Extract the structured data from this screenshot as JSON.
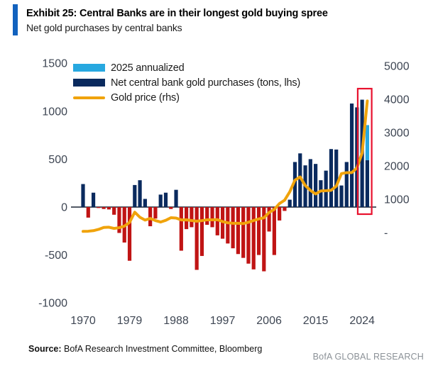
{
  "header": {
    "title": "Exhibit 25: Central Banks are in their longest gold buying spree",
    "subtitle": "Net gold purchases by central banks"
  },
  "legend": [
    {
      "label": "2025 annualized",
      "color": "#27A8E0",
      "swatch": "bar"
    },
    {
      "label": "Net central bank gold purchases (tons, lhs)",
      "color": "#0A2A5E",
      "swatch": "bar"
    },
    {
      "label": "Gold price (rhs)",
      "color": "#F0A30B",
      "swatch": "line"
    }
  ],
  "footer": {
    "source_label": "Source:",
    "source_text": " BofA Research Investment Committee, Bloomberg",
    "branding": "BofA GLOBAL RESEARCH"
  },
  "chart_data": {
    "type": "bar+line dual-axis",
    "title": "Exhibit 25: Central Banks are in their longest gold buying spree",
    "subtitle": "Net gold purchases by central banks",
    "x": [
      1970,
      1971,
      1972,
      1973,
      1974,
      1975,
      1976,
      1977,
      1978,
      1979,
      1980,
      1981,
      1982,
      1983,
      1984,
      1985,
      1986,
      1987,
      1988,
      1989,
      1990,
      1991,
      1992,
      1993,
      1994,
      1995,
      1996,
      1997,
      1998,
      1999,
      2000,
      2001,
      2002,
      2003,
      2004,
      2005,
      2006,
      2007,
      2008,
      2009,
      2010,
      2011,
      2012,
      2013,
      2014,
      2015,
      2016,
      2017,
      2018,
      2019,
      2020,
      2021,
      2022,
      2023,
      2024,
      2025
    ],
    "x_ticks": [
      1970,
      1979,
      1988,
      1997,
      2006,
      2015,
      2024
    ],
    "series": [
      {
        "name": "Net central bank gold purchases (tons, lhs)",
        "type": "bar",
        "axis": "left",
        "values": [
          240,
          -110,
          150,
          -10,
          -20,
          -25,
          -80,
          -270,
          -370,
          -560,
          230,
          280,
          85,
          -200,
          -120,
          130,
          150,
          -20,
          180,
          -455,
          -230,
          -210,
          -655,
          -510,
          -185,
          -210,
          -295,
          -330,
          -380,
          -430,
          -490,
          -530,
          -590,
          -650,
          -500,
          -670,
          -255,
          -500,
          -140,
          -40,
          77,
          470,
          560,
          435,
          500,
          450,
          280,
          380,
          605,
          600,
          225,
          470,
          1080,
          1040,
          1120,
          490
        ]
      },
      {
        "name": "2025 annualized",
        "type": "bar",
        "axis": "left",
        "year": 2025,
        "actual": 490,
        "annualized_total": 855
      },
      {
        "name": "Gold price (rhs)",
        "type": "line",
        "axis": "right",
        "values": [
          36,
          41,
          58,
          97,
          154,
          161,
          125,
          148,
          193,
          306,
          612,
          460,
          376,
          424,
          361,
          317,
          368,
          447,
          437,
          381,
          383,
          362,
          344,
          360,
          384,
          384,
          388,
          331,
          294,
          279,
          279,
          271,
          310,
          363,
          410,
          444,
          603,
          695,
          872,
          972,
          1225,
          1572,
          1669,
          1411,
          1266,
          1160,
          1251,
          1257,
          1269,
          1393,
          1770,
          1799,
          1800,
          1940,
          2390,
          3950
        ]
      }
    ],
    "left_axis": {
      "ticks": [
        1500,
        1000,
        500,
        0,
        -500,
        -1000
      ],
      "range": [
        -1000,
        1500
      ]
    },
    "right_axis": {
      "ticks": [
        {
          "label": "5000",
          "value": 5000
        },
        {
          "label": "4000",
          "value": 4000
        },
        {
          "label": "3000",
          "value": 3000
        },
        {
          "label": "2000",
          "value": 2000
        },
        {
          "label": "1000",
          "value": 1000
        },
        {
          "label": "-",
          "value": 0
        }
      ],
      "range": [
        0,
        5000
      ]
    },
    "colors": {
      "positive_bar": "#0A2A5E",
      "negative_bar": "#C01414",
      "annualized_bar": "#27A8E0",
      "gold_line": "#F0A30B",
      "highlight_box": "#E8112D",
      "axis_text": "#3E4653",
      "zero_line": "#1A2433"
    },
    "highlight_box": {
      "from_year": 2024,
      "to_year": 2025
    },
    "legend_position": "top-left inside plot",
    "grid": false
  }
}
